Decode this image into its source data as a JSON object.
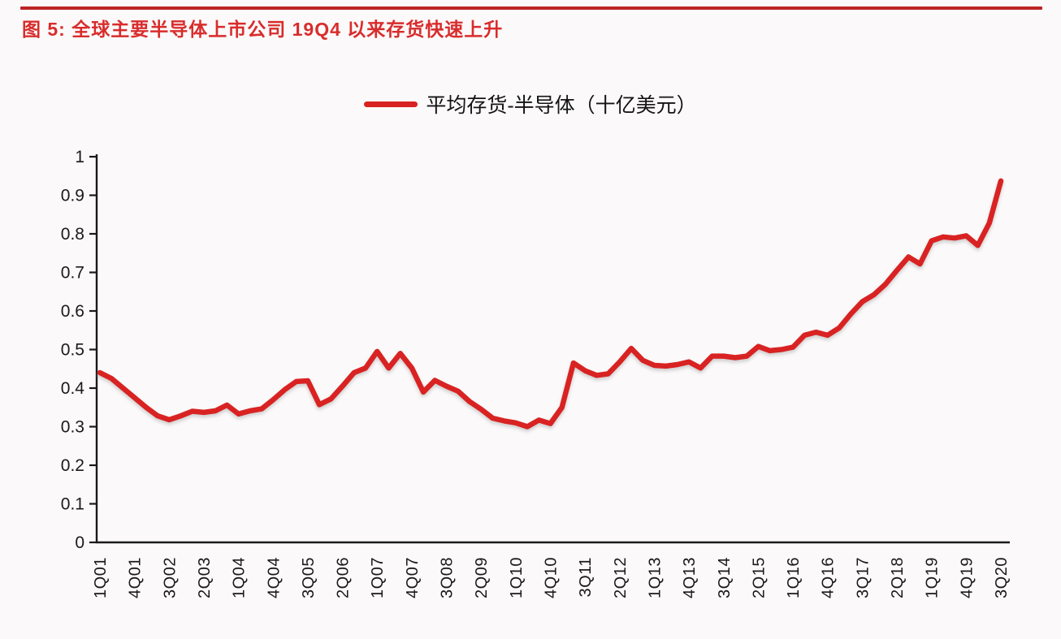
{
  "header": {
    "title": "图 5: 全球主要半导体上市公司 19Q4 以来存货快速上升"
  },
  "legend": {
    "label": "平均存货-半导体（十亿美元）"
  },
  "colors": {
    "series": "#d92222",
    "series_shadow": "#9a9a9a",
    "title": "#d92c2c",
    "rule": "#bc2424",
    "axis": "#1a1a1a",
    "text": "#1a1a1a",
    "background": "#fbf9f9"
  },
  "chart_data": {
    "type": "line",
    "title": "平均存货-半导体（十亿美元）",
    "xlabel": "",
    "ylabel": "",
    "ylim": [
      0,
      1
    ],
    "grid": false,
    "legend_position": "top-center",
    "y_tick_labels": [
      "0",
      "0.1",
      "0.2",
      "0.3",
      "0.4",
      "0.5",
      "0.6",
      "0.7",
      "0.8",
      "0.9",
      "1"
    ],
    "x_tick_every": 3,
    "x_tick_labels": [
      "1Q01",
      "4Q01",
      "3Q02",
      "2Q03",
      "1Q04",
      "4Q04",
      "3Q05",
      "2Q06",
      "1Q07",
      "4Q07",
      "3Q08",
      "2Q09",
      "1Q10",
      "4Q10",
      "3Q11",
      "2Q12",
      "1Q13",
      "4Q13",
      "3Q14",
      "2Q15",
      "1Q16",
      "4Q16",
      "3Q17",
      "2Q18",
      "1Q19",
      "4Q19",
      "3Q20"
    ],
    "categories": [
      "1Q01",
      "2Q01",
      "3Q01",
      "4Q01",
      "1Q02",
      "2Q02",
      "3Q02",
      "4Q02",
      "1Q03",
      "2Q03",
      "3Q03",
      "4Q03",
      "1Q04",
      "2Q04",
      "3Q04",
      "4Q04",
      "1Q05",
      "2Q05",
      "3Q05",
      "4Q05",
      "1Q06",
      "2Q06",
      "3Q06",
      "4Q06",
      "1Q07",
      "2Q07",
      "3Q07",
      "4Q07",
      "1Q08",
      "2Q08",
      "3Q08",
      "4Q08",
      "1Q09",
      "2Q09",
      "3Q09",
      "4Q09",
      "1Q10",
      "2Q10",
      "3Q10",
      "4Q10",
      "1Q11",
      "2Q11",
      "3Q11",
      "4Q11",
      "1Q12",
      "2Q12",
      "3Q12",
      "4Q12",
      "1Q13",
      "2Q13",
      "3Q13",
      "4Q13",
      "1Q14",
      "2Q14",
      "3Q14",
      "4Q14",
      "1Q15",
      "2Q15",
      "3Q15",
      "4Q15",
      "1Q16",
      "2Q16",
      "3Q16",
      "4Q16",
      "1Q17",
      "2Q17",
      "3Q17",
      "4Q17",
      "1Q18",
      "2Q18",
      "3Q18",
      "4Q18",
      "1Q19",
      "2Q19",
      "3Q19",
      "4Q19",
      "1Q20",
      "2Q20",
      "3Q20"
    ],
    "series": [
      {
        "name": "平均存货-半导体（十亿美元）",
        "values": [
          0.44,
          0.425,
          0.4,
          0.375,
          0.35,
          0.328,
          0.318,
          0.328,
          0.34,
          0.337,
          0.341,
          0.356,
          0.333,
          0.341,
          0.346,
          0.37,
          0.396,
          0.417,
          0.419,
          0.357,
          0.372,
          0.405,
          0.44,
          0.452,
          0.495,
          0.452,
          0.49,
          0.452,
          0.39,
          0.42,
          0.405,
          0.392,
          0.365,
          0.345,
          0.322,
          0.315,
          0.31,
          0.3,
          0.317,
          0.308,
          0.35,
          0.465,
          0.445,
          0.433,
          0.437,
          0.468,
          0.503,
          0.472,
          0.459,
          0.457,
          0.461,
          0.468,
          0.452,
          0.483,
          0.483,
          0.479,
          0.483,
          0.508,
          0.497,
          0.5,
          0.506,
          0.537,
          0.545,
          0.537,
          0.556,
          0.592,
          0.624,
          0.642,
          0.669,
          0.705,
          0.74,
          0.722,
          0.782,
          0.792,
          0.789,
          0.795,
          0.77,
          0.828,
          0.937
        ]
      }
    ]
  }
}
